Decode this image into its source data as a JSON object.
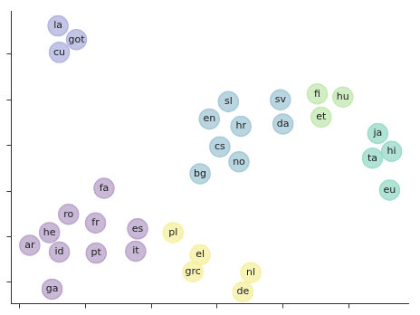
{
  "chart_data": {
    "type": "scatter",
    "xlim": [
      -0.13,
      5.91
    ],
    "xticks": [
      0,
      1,
      2,
      3,
      4,
      5
    ],
    "ylim": [
      -0.47,
      5.94
    ],
    "yticks": [
      0,
      1,
      2,
      3,
      4,
      5
    ],
    "tick_labels": false,
    "grid": false,
    "marker": "circle",
    "series": [
      {
        "color": "#b4b6e0",
        "points": [
          {
            "x": 0.58,
            "y": 5.62,
            "label": "la"
          },
          {
            "x": 0.86,
            "y": 5.32,
            "label": "got"
          },
          {
            "x": 0.6,
            "y": 5.04,
            "label": "cu"
          }
        ]
      },
      {
        "color": "#a8cad8",
        "points": [
          {
            "x": 3.17,
            "y": 3.96,
            "label": "sl"
          },
          {
            "x": 3.96,
            "y": 4.0,
            "label": "sv"
          },
          {
            "x": 2.88,
            "y": 3.58,
            "label": "en"
          },
          {
            "x": 3.36,
            "y": 3.42,
            "label": "hr"
          },
          {
            "x": 4.0,
            "y": 3.47,
            "label": "da"
          },
          {
            "x": 3.04,
            "y": 2.97,
            "label": "cs"
          },
          {
            "x": 3.33,
            "y": 2.64,
            "label": "no"
          },
          {
            "x": 2.74,
            "y": 2.38,
            "label": "bg"
          }
        ]
      },
      {
        "color": "#c6e8b4",
        "points": [
          {
            "x": 4.52,
            "y": 4.13,
            "label": "fi"
          },
          {
            "x": 4.91,
            "y": 4.06,
            "label": "hu"
          },
          {
            "x": 4.58,
            "y": 3.62,
            "label": "et"
          }
        ]
      },
      {
        "color": "#9edccb",
        "points": [
          {
            "x": 5.44,
            "y": 3.26,
            "label": "ja"
          },
          {
            "x": 5.65,
            "y": 2.87,
            "label": "hi"
          },
          {
            "x": 5.36,
            "y": 2.72,
            "label": "ta"
          },
          {
            "x": 5.62,
            "y": 2.02,
            "label": "eu"
          }
        ]
      },
      {
        "color": "#bba6cc",
        "points": [
          {
            "x": 1.28,
            "y": 2.06,
            "label": "fa"
          },
          {
            "x": 0.74,
            "y": 1.49,
            "label": "ro"
          },
          {
            "x": 1.15,
            "y": 1.3,
            "label": "fr"
          },
          {
            "x": 1.79,
            "y": 1.17,
            "label": "es"
          },
          {
            "x": 0.45,
            "y": 1.09,
            "label": "he"
          },
          {
            "x": 0.15,
            "y": 0.81,
            "label": "ar"
          },
          {
            "x": 0.6,
            "y": 0.66,
            "label": "id"
          },
          {
            "x": 1.16,
            "y": 0.64,
            "label": "pt"
          },
          {
            "x": 1.76,
            "y": 0.68,
            "label": "it"
          },
          {
            "x": 0.49,
            "y": -0.15,
            "label": "ga"
          }
        ]
      },
      {
        "color": "#f6f0a4",
        "points": [
          {
            "x": 2.33,
            "y": 1.09,
            "label": "pl"
          },
          {
            "x": 2.74,
            "y": 0.6,
            "label": "el"
          },
          {
            "x": 2.63,
            "y": 0.23,
            "label": "grc"
          },
          {
            "x": 3.51,
            "y": 0.21,
            "label": "nl"
          },
          {
            "x": 3.39,
            "y": -0.21,
            "label": "de"
          }
        ]
      }
    ]
  }
}
